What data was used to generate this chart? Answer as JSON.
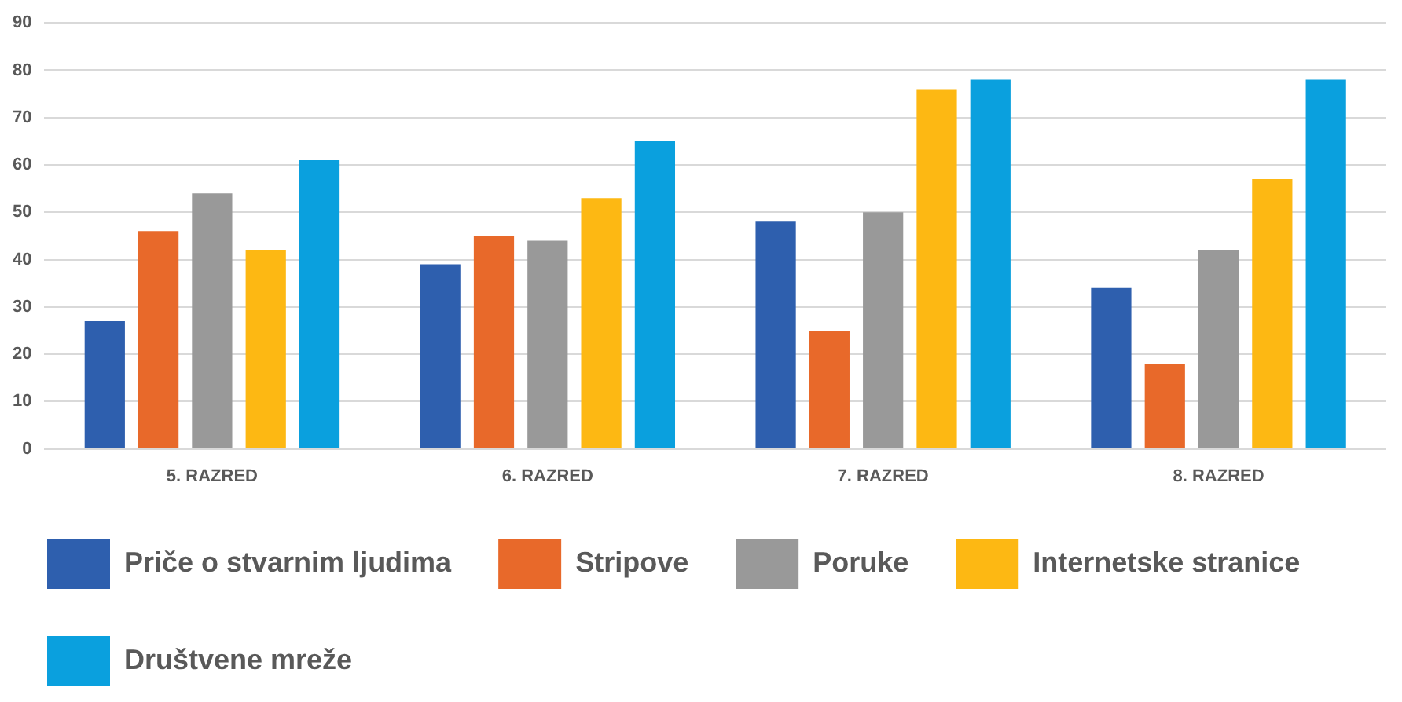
{
  "chart_data": {
    "type": "bar",
    "categories": [
      "5. RAZRED",
      "6. RAZRED",
      "7. RAZRED",
      "8. RAZRED"
    ],
    "series": [
      {
        "name": "Priče o stvarnim ljudima",
        "color": "#2e5fae",
        "values": [
          27,
          39,
          48,
          34
        ]
      },
      {
        "name": "Stripove",
        "color": "#e8692a",
        "values": [
          46,
          45,
          25,
          18
        ]
      },
      {
        "name": "Poruke",
        "color": "#999999",
        "values": [
          54,
          44,
          50,
          42
        ]
      },
      {
        "name": "Internetske stranice",
        "color": "#fdb813",
        "values": [
          42,
          53,
          76,
          57
        ]
      },
      {
        "name": "Društvene mreže",
        "color": "#0aa0de",
        "values": [
          61,
          65,
          78,
          78
        ]
      }
    ],
    "ylim": [
      0,
      90
    ],
    "yticks": [
      0,
      10,
      20,
      30,
      40,
      50,
      60,
      70,
      80,
      90
    ],
    "grid": "y",
    "legend": "bottom"
  }
}
